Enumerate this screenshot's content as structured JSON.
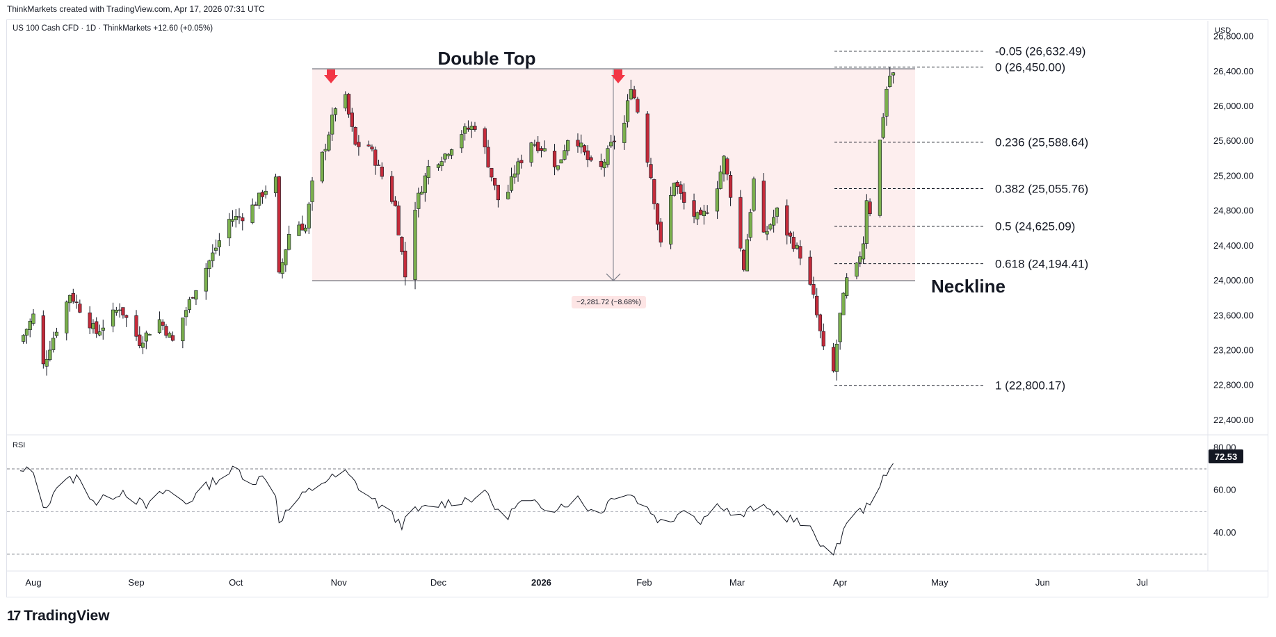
{
  "header": {
    "attribution": "ThinkMarkets created with TradingView.com, Apr 17, 2026 07:31 UTC"
  },
  "legend": {
    "symbol_line": "US 100 Cash CFD · 1D · ThinkMarkets  +12.60 (+0.05%)",
    "currency": "USD",
    "rsi_label": "RSI"
  },
  "brand": {
    "name": "TradingView",
    "mark": "17"
  },
  "annotations": {
    "title": "Double Top",
    "neckline": "Neckline",
    "measure": "−2,281.72 (−8.68%)",
    "fib_levels": [
      {
        "label": "-0.05 (26,632.49)",
        "price": 26632.49
      },
      {
        "label": "0 (26,450.00)",
        "price": 26450.0
      },
      {
        "label": "0.236 (25,588.64)",
        "price": 25588.64
      },
      {
        "label": "0.382 (25,055.76)",
        "price": 25055.76
      },
      {
        "label": "0.5 (24,625.09)",
        "price": 24625.09
      },
      {
        "label": "0.618 (24,194.41)",
        "price": 24194.41
      },
      {
        "label": "1 (22,800.17)",
        "price": 22800.17
      }
    ],
    "rsi_value": "72.53"
  },
  "colors": {
    "up": "#7bb04d",
    "down": "#c42b3a",
    "zone_fill": "#fdeeee",
    "arrow": "#f23645",
    "rsi_line": "#131722"
  },
  "chart_data": [
    {
      "type": "candlestick",
      "title": "",
      "x_ticks": [
        "Aug",
        "Sep",
        "Oct",
        "Nov",
        "Dec",
        "2026",
        "Feb",
        "Mar",
        "Apr",
        "May",
        "Jun",
        "Jul"
      ],
      "y_ticks": [
        "26,800.00",
        "26,400.00",
        "26,000.00",
        "25,600.00",
        "25,200.00",
        "24,800.00",
        "24,400.00",
        "24,000.00",
        "23,600.00",
        "23,200.00",
        "22,800.00",
        "22,400.00"
      ],
      "ylim": [
        22280,
        26980
      ],
      "double_top": {
        "resistance": 26430,
        "neckline": 24000
      },
      "close_path": [
        [
          "Jul 28",
          23300
        ],
        [
          "Aug 1",
          23600
        ],
        [
          "Aug 2",
          22800
        ],
        [
          "Aug 6",
          23250
        ],
        [
          "Aug 12",
          23850
        ],
        [
          "Aug 20",
          23400
        ],
        [
          "Aug 27",
          23700
        ],
        [
          "Sep 2",
          23300
        ],
        [
          "Sep 8",
          23550
        ],
        [
          "Sep 12",
          23300
        ],
        [
          "Sep 18",
          23850
        ],
        [
          "Sep 24",
          24300
        ],
        [
          "Sep 29",
          24700
        ],
        [
          "Oct 4",
          24750
        ],
        [
          "Oct 10",
          25050
        ],
        [
          "Oct 13",
          25150
        ],
        [
          "Oct 14",
          24050
        ],
        [
          "Oct 18",
          24700
        ],
        [
          "Oct 22",
          24600
        ],
        [
          "Oct 24",
          25100
        ],
        [
          "Oct 28",
          25550
        ],
        [
          "Oct 31",
          26000
        ],
        [
          "Nov 3",
          26080
        ],
        [
          "Nov 6",
          25550
        ],
        [
          "Nov 10",
          25550
        ],
        [
          "Nov 14",
          25200
        ],
        [
          "Nov 18",
          24850
        ],
        [
          "Nov 21",
          24050
        ],
        [
          "Nov 24",
          24850
        ],
        [
          "Nov 28",
          25300
        ],
        [
          "Dec 3",
          25450
        ],
        [
          "Dec 8",
          25700
        ],
        [
          "Dec 13",
          25800
        ],
        [
          "Dec 17",
          25200
        ],
        [
          "Dec 20",
          24800
        ],
        [
          "Dec 24",
          25250
        ],
        [
          "Dec 29",
          25600
        ],
        [
          "Jan 2",
          25500
        ],
        [
          "Jan 6",
          25300
        ],
        [
          "Jan 10",
          25750
        ],
        [
          "Jan 14",
          25450
        ],
        [
          "Jan 18",
          25200
        ],
        [
          "Jan 22",
          25550
        ],
        [
          "Jan 26",
          25800
        ],
        [
          "Jan 28",
          26250
        ],
        [
          "Jan 31",
          25800
        ],
        [
          "Feb 3",
          25200
        ],
        [
          "Feb 6",
          24400
        ],
        [
          "Feb 10",
          25150
        ],
        [
          "Feb 14",
          24800
        ],
        [
          "Feb 18",
          24700
        ],
        [
          "Feb 22",
          24950
        ],
        [
          "Feb 25",
          25400
        ],
        [
          "Feb 28",
          24800
        ],
        [
          "Mar 3",
          24150
        ],
        [
          "Mar 6",
          25150
        ],
        [
          "Mar 9",
          24500
        ],
        [
          "Mar 13",
          24800
        ],
        [
          "Mar 16",
          24550
        ],
        [
          "Mar 20",
          24300
        ],
        [
          "Mar 24",
          23800
        ],
        [
          "Mar 27",
          23200
        ],
        [
          "Mar 30",
          22950
        ],
        [
          "Apr 1",
          23600
        ],
        [
          "Apr 3",
          24000
        ],
        [
          "Apr 6",
          24150
        ],
        [
          "Apr 8",
          24450
        ],
        [
          "Apr 9",
          24950
        ],
        [
          "Apr 10",
          24800
        ],
        [
          "Apr 13",
          25600
        ],
        [
          "Apr 14",
          25900
        ],
        [
          "Apr 15",
          26200
        ],
        [
          "Apr 16",
          26350
        ],
        [
          "Apr 17",
          26360
        ]
      ]
    },
    {
      "type": "line",
      "title": "",
      "name": "RSI",
      "y_ticks": [
        "80.00",
        "60.00",
        "40.00"
      ],
      "ylim": [
        26,
        84
      ],
      "levels": [
        70,
        50,
        30
      ],
      "last_value": 72.53,
      "path": [
        [
          "Jul 28",
          68
        ],
        [
          "Aug 1",
          70
        ],
        [
          "Aug 4",
          50
        ],
        [
          "Aug 8",
          62
        ],
        [
          "Aug 14",
          66
        ],
        [
          "Aug 20",
          54
        ],
        [
          "Aug 28",
          60
        ],
        [
          "Sep 4",
          52
        ],
        [
          "Sep 10",
          60
        ],
        [
          "Sep 16",
          54
        ],
        [
          "Sep 24",
          64
        ],
        [
          "Oct 1",
          70
        ],
        [
          "Oct 6",
          64
        ],
        [
          "Oct 12",
          68
        ],
        [
          "Oct 14",
          46
        ],
        [
          "Oct 20",
          56
        ],
        [
          "Oct 27",
          64
        ],
        [
          "Nov 3",
          68
        ],
        [
          "Nov 8",
          60
        ],
        [
          "Nov 14",
          52
        ],
        [
          "Nov 20",
          44
        ],
        [
          "Nov 24",
          50
        ],
        [
          "Dec 3",
          54
        ],
        [
          "Dec 10",
          56
        ],
        [
          "Dec 16",
          58
        ],
        [
          "Dec 20",
          46
        ],
        [
          "Dec 26",
          54
        ],
        [
          "Jan 5",
          52
        ],
        [
          "Jan 12",
          56
        ],
        [
          "Jan 18",
          48
        ],
        [
          "Jan 24",
          60
        ],
        [
          "Jan 28",
          58
        ],
        [
          "Feb 3",
          50
        ],
        [
          "Feb 8",
          42
        ],
        [
          "Feb 12",
          52
        ],
        [
          "Feb 18",
          46
        ],
        [
          "Feb 24",
          54
        ],
        [
          "Mar 1",
          46
        ],
        [
          "Mar 6",
          52
        ],
        [
          "Mar 12",
          50
        ],
        [
          "Mar 18",
          46
        ],
        [
          "Mar 24",
          40
        ],
        [
          "Mar 30",
          28
        ],
        [
          "Apr 3",
          46
        ],
        [
          "Apr 9",
          52
        ],
        [
          "Apr 12",
          62
        ],
        [
          "Apr 15",
          66
        ],
        [
          "Apr 17",
          72.53
        ]
      ]
    }
  ]
}
